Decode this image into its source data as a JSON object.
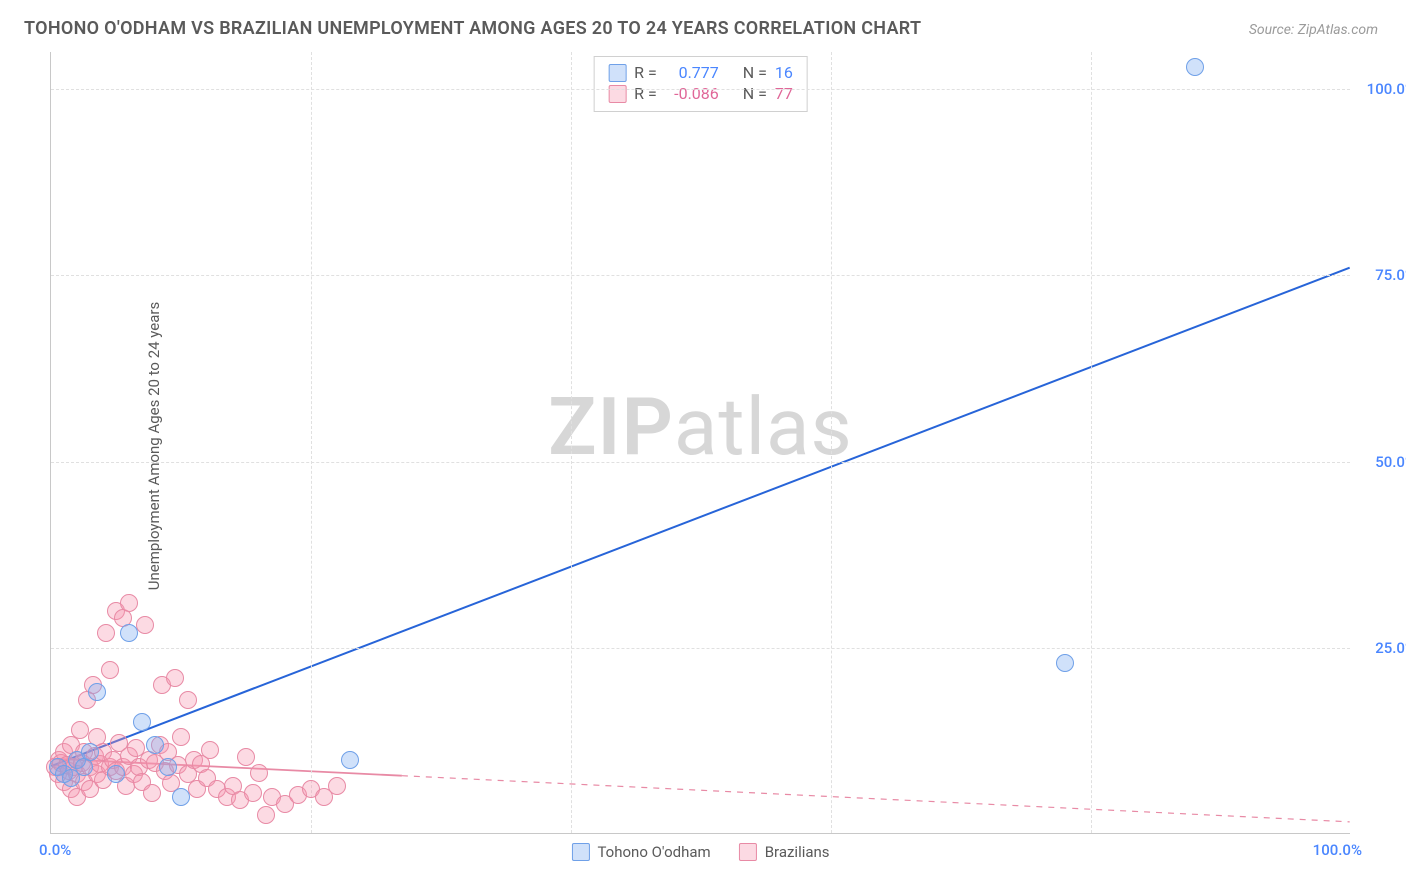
{
  "title": "TOHONO O'ODHAM VS BRAZILIAN UNEMPLOYMENT AMONG AGES 20 TO 24 YEARS CORRELATION CHART",
  "source": "Source: ZipAtlas.com",
  "ylabel": "Unemployment Among Ages 20 to 24 years",
  "watermark_a": "ZIP",
  "watermark_b": "atlas",
  "chart": {
    "type": "scatter",
    "xlim": [
      0,
      100
    ],
    "ylim": [
      0,
      105
    ],
    "yticks": [
      25,
      50,
      75,
      100
    ],
    "ytick_labels": [
      "25.0%",
      "50.0%",
      "75.0%",
      "100.0%"
    ],
    "xticks_grid": [
      20,
      40,
      60,
      80
    ],
    "xtick_min_label": "0.0%",
    "xtick_max_label": "100.0%",
    "grid_color": "#e0e0e0",
    "axis_color": "#c8c8c8",
    "background_color": "#ffffff",
    "point_radius": 9,
    "point_border_width": 1,
    "series": [
      {
        "name": "Tohono O'odham",
        "color_fill": "rgba(120,170,240,0.35)",
        "color_stroke": "#6fa0e8",
        "r_value": "0.777",
        "n_value": "16",
        "text_color": "#4a86ff",
        "trend": {
          "x1": 0,
          "y1": 9,
          "x2": 100,
          "y2": 76,
          "stroke": "#2764d8",
          "width": 2,
          "dash": ""
        },
        "points": [
          [
            0.5,
            9
          ],
          [
            1,
            8
          ],
          [
            1.5,
            7.5
          ],
          [
            2,
            10
          ],
          [
            2.5,
            9
          ],
          [
            3,
            11
          ],
          [
            3.5,
            19
          ],
          [
            5,
            8
          ],
          [
            6,
            27
          ],
          [
            7,
            15
          ],
          [
            8,
            12
          ],
          [
            9,
            9
          ],
          [
            10,
            5
          ],
          [
            23,
            10
          ],
          [
            78,
            23
          ],
          [
            88,
            103
          ]
        ]
      },
      {
        "name": "Brazilians",
        "color_fill": "rgba(245,150,175,0.35)",
        "color_stroke": "#e88aa5",
        "r_value": "-0.086",
        "n_value": "77",
        "text_color": "#e06698",
        "trend": {
          "x1": 0,
          "y1": 10,
          "x2": 100,
          "y2": 1.5,
          "stroke": "#e88aa5",
          "width": 1.2,
          "dash": "6 6",
          "solid_until_x": 27
        },
        "points": [
          [
            0.3,
            9
          ],
          [
            0.5,
            8
          ],
          [
            0.6,
            10
          ],
          [
            0.8,
            9.5
          ],
          [
            1,
            7
          ],
          [
            1,
            11
          ],
          [
            1.2,
            9.2
          ],
          [
            1.4,
            8.4
          ],
          [
            1.5,
            6
          ],
          [
            1.5,
            12
          ],
          [
            1.8,
            9
          ],
          [
            2,
            10
          ],
          [
            2,
            8
          ],
          [
            2,
            5
          ],
          [
            2.2,
            14
          ],
          [
            2.4,
            9.5
          ],
          [
            2.5,
            11
          ],
          [
            2.5,
            7
          ],
          [
            2.8,
            18
          ],
          [
            3,
            9
          ],
          [
            3,
            6
          ],
          [
            3.2,
            20
          ],
          [
            3.4,
            10.5
          ],
          [
            3.5,
            8
          ],
          [
            3.5,
            13
          ],
          [
            3.8,
            9.4
          ],
          [
            4,
            11
          ],
          [
            4,
            7.2
          ],
          [
            4.2,
            27
          ],
          [
            4.5,
            9
          ],
          [
            4.5,
            22
          ],
          [
            4.8,
            10
          ],
          [
            5,
            8.5
          ],
          [
            5,
            30
          ],
          [
            5.2,
            12.2
          ],
          [
            5.5,
            9
          ],
          [
            5.5,
            29
          ],
          [
            5.8,
            6.5
          ],
          [
            6,
            10.5
          ],
          [
            6,
            31
          ],
          [
            6.4,
            8
          ],
          [
            6.5,
            11.5
          ],
          [
            6.8,
            9
          ],
          [
            7,
            7
          ],
          [
            7.2,
            28
          ],
          [
            7.5,
            10
          ],
          [
            7.8,
            5.5
          ],
          [
            8,
            9.5
          ],
          [
            8.4,
            12
          ],
          [
            8.5,
            20
          ],
          [
            8.8,
            8.5
          ],
          [
            9,
            11
          ],
          [
            9.2,
            6.8
          ],
          [
            9.5,
            21
          ],
          [
            9.8,
            9.3
          ],
          [
            10,
            13
          ],
          [
            10.5,
            8
          ],
          [
            10.5,
            18
          ],
          [
            11,
            10
          ],
          [
            11.2,
            6
          ],
          [
            11.5,
            9.4
          ],
          [
            12,
            7.5
          ],
          [
            12.2,
            11.3
          ],
          [
            12.8,
            6
          ],
          [
            13.5,
            5
          ],
          [
            14,
            6.5
          ],
          [
            14.5,
            4.5
          ],
          [
            15,
            10.3
          ],
          [
            15.5,
            5.5
          ],
          [
            16,
            8.2
          ],
          [
            16.5,
            2.5
          ],
          [
            17,
            5
          ],
          [
            18,
            4
          ],
          [
            19,
            5.2
          ],
          [
            20,
            6
          ],
          [
            21,
            5
          ],
          [
            22,
            6.5
          ]
        ]
      }
    ]
  },
  "legend_top": {
    "r_label": "R =",
    "n_label": "N ="
  },
  "legend_bottom": {
    "items": [
      "Tohono O'odham",
      "Brazilians"
    ]
  }
}
